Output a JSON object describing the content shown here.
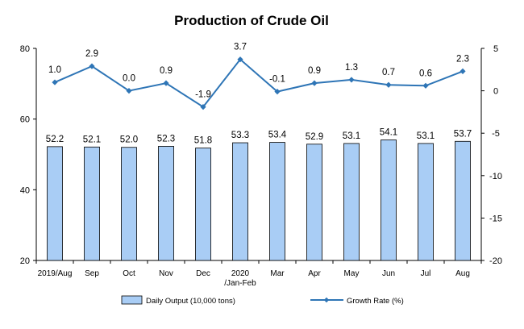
{
  "chart_data": {
    "type": "bar+line",
    "title": "Production of Crude Oil",
    "categories": [
      "2019/Aug",
      "Sep",
      "Oct",
      "Nov",
      "Dec",
      "2020\n/Jan-Feb",
      "Mar",
      "Apr",
      "May",
      "Jun",
      "Jul",
      "Aug"
    ],
    "series": [
      {
        "name": "Daily Output (10,000 tons)",
        "type": "bar",
        "axis": "left",
        "color": "#a9cdf5",
        "values": [
          52.2,
          52.1,
          52.0,
          52.3,
          51.8,
          53.3,
          53.4,
          52.9,
          53.1,
          54.1,
          53.1,
          53.7
        ],
        "labels": [
          "52.2",
          "52.1",
          "52.0",
          "52.3",
          "51.8",
          "53.3",
          "53.4",
          "52.9",
          "53.1",
          "54.1",
          "53.1",
          "53.7"
        ]
      },
      {
        "name": "Growth Rate (%)",
        "type": "line",
        "axis": "right",
        "color": "#2e75b6",
        "values": [
          1.0,
          2.9,
          0.0,
          0.9,
          -1.9,
          3.7,
          -0.1,
          0.9,
          1.3,
          0.7,
          0.6,
          2.3
        ],
        "labels": [
          "1.0",
          "2.9",
          "0.0",
          "0.9",
          "-1.9",
          "3.7",
          "-0.1",
          "0.9",
          "1.3",
          "0.7",
          "0.6",
          "2.3"
        ]
      }
    ],
    "y_left": {
      "min": 20,
      "max": 80,
      "ticks": [
        20,
        40,
        60,
        80
      ]
    },
    "y_right": {
      "min": -20,
      "max": 5,
      "ticks": [
        5,
        0,
        -5,
        -10,
        -15,
        -20
      ]
    },
    "grid": false,
    "legend_position": "bottom"
  }
}
